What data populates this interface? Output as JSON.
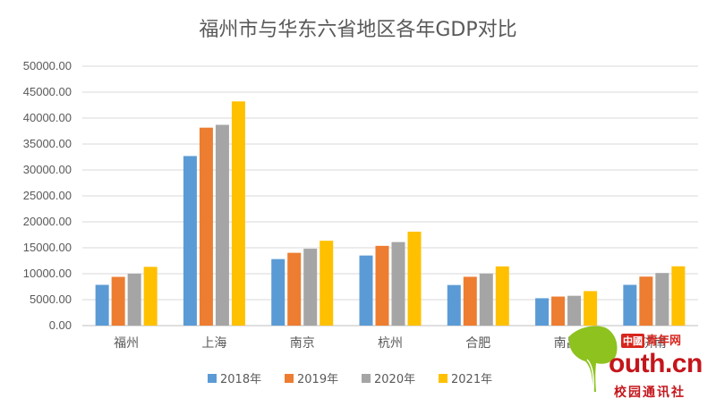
{
  "chart_data": {
    "type": "bar",
    "title": "福州市与华东六省地区各年GDP对比",
    "categories": [
      "福州",
      "上海",
      "南京",
      "杭州",
      "合肥",
      "南昌",
      "济南"
    ],
    "series": [
      {
        "name": "2018年",
        "color": "#5b9bd5",
        "values": [
          7857,
          32680,
          12820,
          13509,
          7822,
          5275,
          7857
        ]
      },
      {
        "name": "2019年",
        "color": "#ed7d31",
        "values": [
          9392,
          38155,
          14031,
          15373,
          9409,
          5596,
          9443
        ]
      },
      {
        "name": "2020年",
        "color": "#a5a5a5",
        "values": [
          10020,
          38701,
          14818,
          16106,
          10046,
          5746,
          10141
        ]
      },
      {
        "name": "2021年",
        "color": "#ffc000",
        "values": [
          11324,
          43215,
          16355,
          18109,
          11413,
          6651,
          11432
        ]
      }
    ],
    "ylim": [
      0,
      50000
    ],
    "yticks": [
      0,
      5000,
      10000,
      15000,
      20000,
      25000,
      30000,
      35000,
      40000,
      45000,
      50000
    ],
    "ytick_labels": [
      "0.00",
      "5000.00",
      "10000.00",
      "15000.00",
      "20000.00",
      "25000.00",
      "30000.00",
      "35000.00",
      "40000.00",
      "45000.00",
      "50000.00"
    ],
    "grid": true,
    "legend_position": "bottom",
    "xlabel": "",
    "ylabel": ""
  },
  "watermark": {
    "brand_box": "中國",
    "brand_rest": "青年网",
    "domain": "outh.cn",
    "school": "校园通讯社",
    "leaf_color": "#8dc21f"
  }
}
